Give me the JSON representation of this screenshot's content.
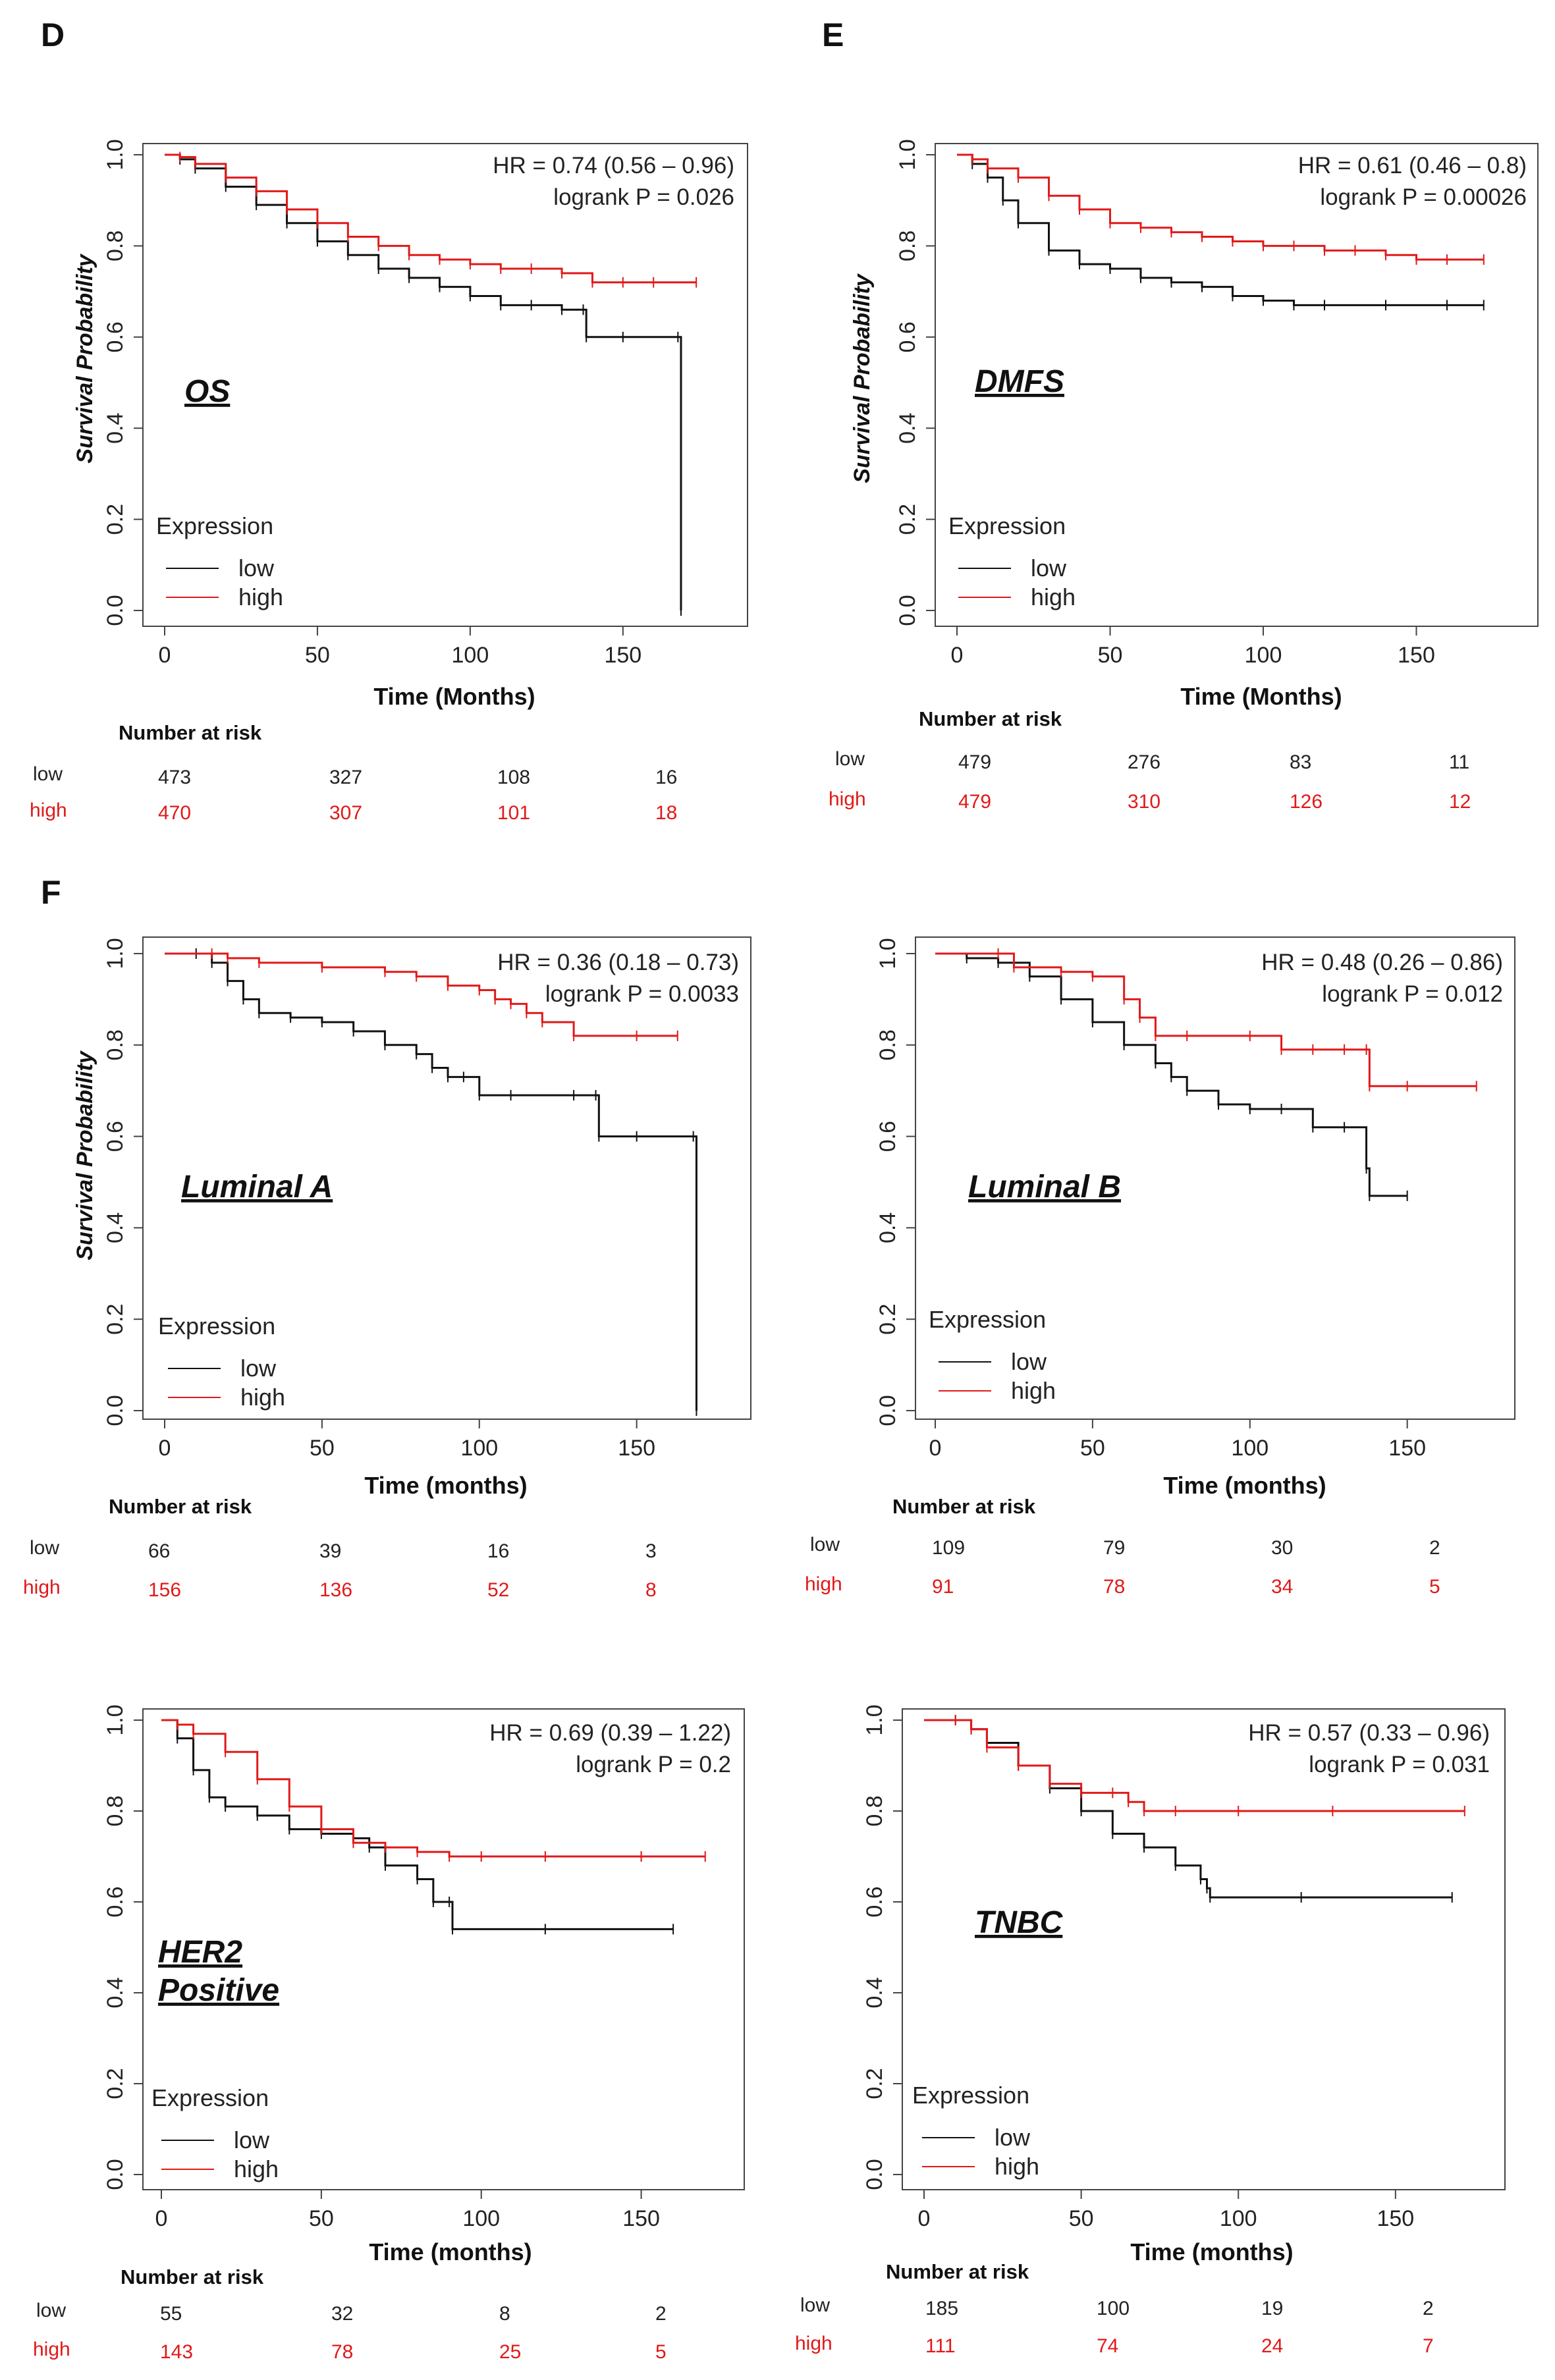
{
  "figure_labels": [
    "D",
    "E",
    "F"
  ],
  "common": {
    "y_ticks": [
      "0.0",
      "0.2",
      "0.4",
      "0.6",
      "0.8",
      "1.0"
    ],
    "x_ticks": [
      "0",
      "50",
      "100",
      "150"
    ],
    "legend_title": "Expression",
    "legend_low": "low",
    "legend_high": "high",
    "risk_header": "Number at risk",
    "risk_low_label": "low",
    "risk_high_label": "high",
    "color_low": "#111111",
    "color_high": "#e11919"
  },
  "chart_data": [
    {
      "type": "line",
      "title": "OS",
      "xlabel": "Time (Months)",
      "ylabel": "Survival Probability",
      "xlim": [
        0,
        180
      ],
      "ylim": [
        0,
        1
      ],
      "hr_text": "HR = 0.74 (0.56 – 0.96)",
      "p_text": "logrank P = 0.026",
      "series": [
        {
          "name": "low",
          "x": [
            0,
            5,
            10,
            20,
            30,
            40,
            50,
            60,
            70,
            80,
            90,
            100,
            110,
            120,
            130,
            137,
            138,
            150,
            168,
            169
          ],
          "y": [
            1.0,
            0.99,
            0.97,
            0.93,
            0.89,
            0.85,
            0.81,
            0.78,
            0.75,
            0.73,
            0.71,
            0.69,
            0.67,
            0.67,
            0.66,
            0.66,
            0.6,
            0.6,
            0.6,
            0.0
          ]
        },
        {
          "name": "high",
          "x": [
            0,
            5,
            10,
            20,
            30,
            40,
            50,
            60,
            70,
            80,
            90,
            100,
            110,
            120,
            130,
            140,
            150,
            160,
            174
          ],
          "y": [
            1.0,
            0.995,
            0.98,
            0.95,
            0.92,
            0.88,
            0.85,
            0.82,
            0.8,
            0.78,
            0.77,
            0.76,
            0.75,
            0.75,
            0.74,
            0.72,
            0.72,
            0.72,
            0.72
          ]
        }
      ],
      "risk": {
        "ticks": [
          0,
          50,
          100,
          150
        ],
        "low": [
          "473",
          "327",
          "108",
          "16"
        ],
        "high": [
          "470",
          "307",
          "101",
          "18"
        ]
      }
    },
    {
      "type": "line",
      "title": "DMFS",
      "xlabel": "Time (Months)",
      "ylabel": "Survival Probability",
      "xlim": [
        0,
        180
      ],
      "ylim": [
        0,
        1
      ],
      "hr_text": "HR = 0.61 (0.46 – 0.8)",
      "p_text": "logrank P = 0.00026",
      "series": [
        {
          "name": "low",
          "x": [
            0,
            5,
            10,
            15,
            20,
            30,
            40,
            50,
            60,
            70,
            80,
            90,
            100,
            110,
            120,
            140,
            160,
            172
          ],
          "y": [
            1.0,
            0.98,
            0.95,
            0.9,
            0.85,
            0.79,
            0.76,
            0.75,
            0.73,
            0.72,
            0.71,
            0.69,
            0.68,
            0.67,
            0.67,
            0.67,
            0.67,
            0.67
          ]
        },
        {
          "name": "high",
          "x": [
            0,
            5,
            10,
            20,
            30,
            40,
            50,
            60,
            70,
            80,
            90,
            100,
            110,
            120,
            130,
            140,
            150,
            160,
            172
          ],
          "y": [
            1.0,
            0.99,
            0.97,
            0.95,
            0.91,
            0.88,
            0.85,
            0.84,
            0.83,
            0.82,
            0.81,
            0.8,
            0.8,
            0.79,
            0.79,
            0.78,
            0.77,
            0.77,
            0.77
          ]
        }
      ],
      "risk": {
        "ticks": [
          0,
          50,
          100,
          150
        ],
        "low": [
          "479",
          "276",
          "83",
          "11"
        ],
        "high": [
          "479",
          "310",
          "126",
          "12"
        ]
      }
    },
    {
      "type": "line",
      "title": "Luminal A",
      "xlabel": "Time (months)",
      "ylabel": "Survival Probability",
      "xlim": [
        0,
        180
      ],
      "ylim": [
        0,
        1
      ],
      "hr_text": "HR = 0.36 (0.18 – 0.73)",
      "p_text": "logrank P = 0.0033",
      "series": [
        {
          "name": "low",
          "x": [
            0,
            10,
            15,
            20,
            25,
            30,
            40,
            50,
            60,
            70,
            80,
            85,
            90,
            95,
            100,
            110,
            130,
            137,
            138,
            150,
            168,
            169
          ],
          "y": [
            1.0,
            1.0,
            0.98,
            0.94,
            0.9,
            0.87,
            0.86,
            0.85,
            0.83,
            0.8,
            0.78,
            0.75,
            0.73,
            0.73,
            0.69,
            0.69,
            0.69,
            0.69,
            0.6,
            0.6,
            0.6,
            0.0
          ]
        },
        {
          "name": "high",
          "x": [
            0,
            15,
            20,
            30,
            50,
            70,
            80,
            90,
            100,
            105,
            110,
            115,
            120,
            130,
            150,
            163
          ],
          "y": [
            1.0,
            1.0,
            0.99,
            0.98,
            0.97,
            0.96,
            0.95,
            0.93,
            0.92,
            0.9,
            0.89,
            0.87,
            0.85,
            0.82,
            0.82,
            0.82
          ]
        }
      ],
      "risk": {
        "ticks": [
          0,
          50,
          100,
          150
        ],
        "low": [
          "66",
          "39",
          "16",
          "3"
        ],
        "high": [
          "156",
          "136",
          "52",
          "8"
        ]
      }
    },
    {
      "type": "line",
      "title": "Luminal B",
      "xlabel": "Time (months)",
      "ylabel": "",
      "xlim": [
        0,
        180
      ],
      "ylim": [
        0,
        1
      ],
      "hr_text": "HR = 0.48 (0.26 – 0.86)",
      "p_text": "logrank P = 0.012",
      "series": [
        {
          "name": "low",
          "x": [
            0,
            10,
            20,
            30,
            40,
            50,
            60,
            70,
            75,
            80,
            90,
            100,
            110,
            120,
            130,
            137,
            138,
            150
          ],
          "y": [
            1.0,
            0.99,
            0.98,
            0.95,
            0.9,
            0.85,
            0.8,
            0.76,
            0.73,
            0.7,
            0.67,
            0.66,
            0.66,
            0.62,
            0.62,
            0.53,
            0.47,
            0.47
          ]
        },
        {
          "name": "high",
          "x": [
            0,
            20,
            25,
            40,
            50,
            60,
            65,
            70,
            80,
            100,
            110,
            120,
            130,
            137,
            138,
            150,
            172
          ],
          "y": [
            1.0,
            1.0,
            0.97,
            0.96,
            0.95,
            0.9,
            0.86,
            0.82,
            0.82,
            0.82,
            0.79,
            0.79,
            0.79,
            0.79,
            0.71,
            0.71,
            0.71
          ]
        }
      ],
      "risk": {
        "ticks": [
          0,
          50,
          100,
          150
        ],
        "low": [
          "109",
          "79",
          "30",
          "2"
        ],
        "high": [
          "91",
          "78",
          "34",
          "5"
        ]
      }
    },
    {
      "type": "line",
      "title": "HER2 Positive",
      "xlabel": "Time (months)",
      "ylabel": "",
      "xlim": [
        0,
        175
      ],
      "ylim": [
        0,
        1
      ],
      "hr_text": "HR = 0.69 (0.39 – 1.22)",
      "p_text": "logrank P = 0.2",
      "series": [
        {
          "name": "low",
          "x": [
            0,
            5,
            10,
            15,
            20,
            30,
            40,
            50,
            60,
            65,
            70,
            80,
            85,
            90,
            91,
            120,
            160
          ],
          "y": [
            1.0,
            0.96,
            0.89,
            0.83,
            0.81,
            0.79,
            0.76,
            0.75,
            0.74,
            0.72,
            0.68,
            0.65,
            0.6,
            0.6,
            0.54,
            0.54,
            0.54
          ]
        },
        {
          "name": "high",
          "x": [
            0,
            5,
            10,
            20,
            30,
            40,
            50,
            60,
            70,
            80,
            90,
            100,
            120,
            150,
            170
          ],
          "y": [
            1.0,
            0.99,
            0.97,
            0.93,
            0.87,
            0.81,
            0.76,
            0.73,
            0.72,
            0.71,
            0.7,
            0.7,
            0.7,
            0.7,
            0.7
          ]
        }
      ],
      "risk": {
        "ticks": [
          0,
          50,
          100,
          150
        ],
        "low": [
          "55",
          "32",
          "8",
          "2"
        ],
        "high": [
          "143",
          "78",
          "25",
          "5"
        ]
      }
    },
    {
      "type": "line",
      "title": "TNBC",
      "xlabel": "Time (months)",
      "ylabel": "",
      "xlim": [
        0,
        180
      ],
      "ylim": [
        0,
        1
      ],
      "hr_text": "HR = 0.57 (0.33 – 0.96)",
      "p_text": "logrank P = 0.031",
      "series": [
        {
          "name": "low",
          "x": [
            0,
            10,
            15,
            20,
            30,
            40,
            50,
            60,
            70,
            80,
            88,
            90,
            91,
            120,
            168
          ],
          "y": [
            1.0,
            1.0,
            0.98,
            0.95,
            0.9,
            0.85,
            0.8,
            0.75,
            0.72,
            0.68,
            0.65,
            0.63,
            0.61,
            0.61,
            0.61
          ]
        },
        {
          "name": "high",
          "x": [
            0,
            10,
            15,
            20,
            30,
            40,
            50,
            60,
            65,
            70,
            80,
            100,
            130,
            172
          ],
          "y": [
            1.0,
            1.0,
            0.98,
            0.94,
            0.9,
            0.86,
            0.84,
            0.84,
            0.82,
            0.8,
            0.8,
            0.8,
            0.8,
            0.8
          ]
        }
      ],
      "risk": {
        "ticks": [
          0,
          50,
          100,
          150
        ],
        "low": [
          "185",
          "100",
          "19",
          "2"
        ],
        "high": [
          "111",
          "74",
          "24",
          "7"
        ]
      }
    }
  ]
}
